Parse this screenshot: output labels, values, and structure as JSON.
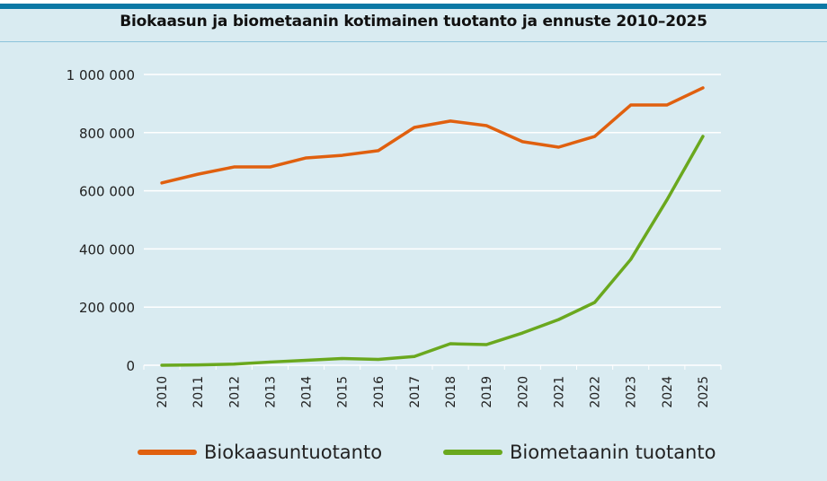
{
  "chart_data": {
    "type": "line",
    "title": "Biokaasun ja biometaanin kotimainen tuotanto ja ennuste 2010–2025",
    "xlabel": "",
    "ylabel": "",
    "ylim": [
      0,
      1000000
    ],
    "yticks": [
      0,
      200000,
      400000,
      600000,
      800000,
      1000000
    ],
    "ytick_labels": [
      "0",
      "200 000",
      "400 000",
      "600 000",
      "800 000",
      "1 000 000"
    ],
    "categories": [
      "2010",
      "2011",
      "2012",
      "2013",
      "2014",
      "2015",
      "2016",
      "2017",
      "2018",
      "2019",
      "2020",
      "2021",
      "2022",
      "2023",
      "2024",
      "2025"
    ],
    "grid": true,
    "legend_position": "bottom",
    "series": [
      {
        "name": "Biokaasuntuotanto",
        "color": "#e0600f",
        "values": [
          627000,
          657000,
          682000,
          682000,
          713000,
          722000,
          738000,
          818000,
          840000,
          824000,
          769000,
          750000,
          787000,
          895000,
          895000,
          954000
        ]
      },
      {
        "name": "Biometaanin tuotanto",
        "color": "#6aa81e",
        "values": [
          0,
          1000,
          4000,
          11000,
          17000,
          23000,
          20000,
          30000,
          74000,
          71000,
          111000,
          157000,
          216000,
          364000,
          568000,
          787000
        ]
      }
    ]
  }
}
